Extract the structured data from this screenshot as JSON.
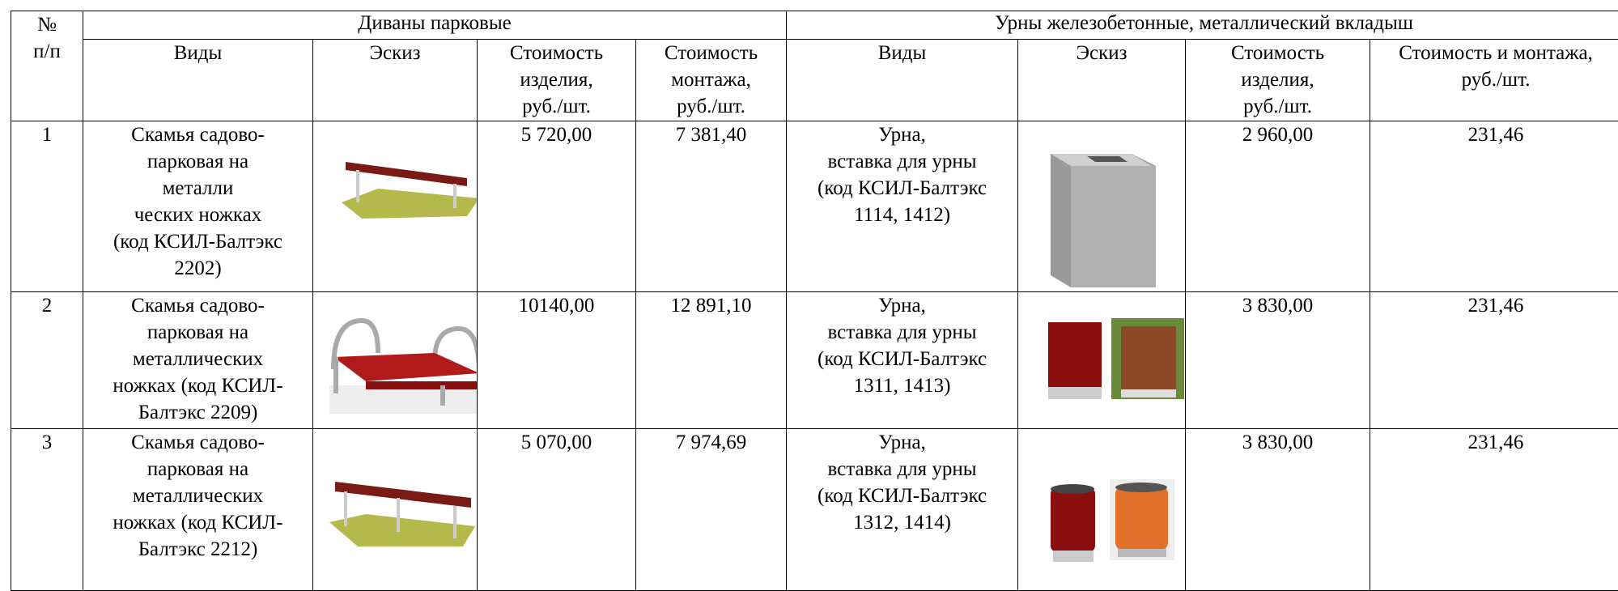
{
  "table": {
    "header": {
      "number": "№\nп/п",
      "groups": [
        "Диваны парковые",
        "Урны железобетонные, металлический вкладыш"
      ],
      "columns": [
        "Виды",
        "Эскиз",
        "Стоимость\nизделия,\nруб./шт.",
        "Стоимость\nмонтажа,\nруб./шт.",
        "Виды",
        "Эскиз",
        "Стоимость\nизделия,\nруб./шт.",
        "Стоимость и монтажа,\nруб./шт."
      ]
    },
    "rows": [
      [
        "1",
        "Скамья садово-\nпарковая на\nметалли\nческих ножках\n(код КСИЛ-Балтэкс\n2202)",
        "5 720,00",
        "7 381,40",
        "Урна,\nвставка для урны\n(код КСИЛ-Балтэкс\n1114, 1412)",
        "2 960,00",
        "231,46"
      ],
      [
        "2",
        "Скамья садово-\nпарковая на\nметаллических\nножках (код КСИЛ-\nБалтэкс 2209)",
        "10140,00",
        "12 891,10",
        "Урна,\nвставка для урны\n(код КСИЛ-Балтэкс\n1311, 1413)",
        "3 830,00",
        "231,46"
      ],
      [
        "3",
        "Скамья садово-\nпарковая на\nметаллических\nножках (код КСИЛ-\nБалтэкс 2212)",
        "5 070,00",
        "7 974,69",
        "Урна,\nвставка для урны\n(код КСИЛ-Балтэкс\n1312, 1414)",
        "3 830,00",
        "231,46"
      ]
    ]
  }
}
